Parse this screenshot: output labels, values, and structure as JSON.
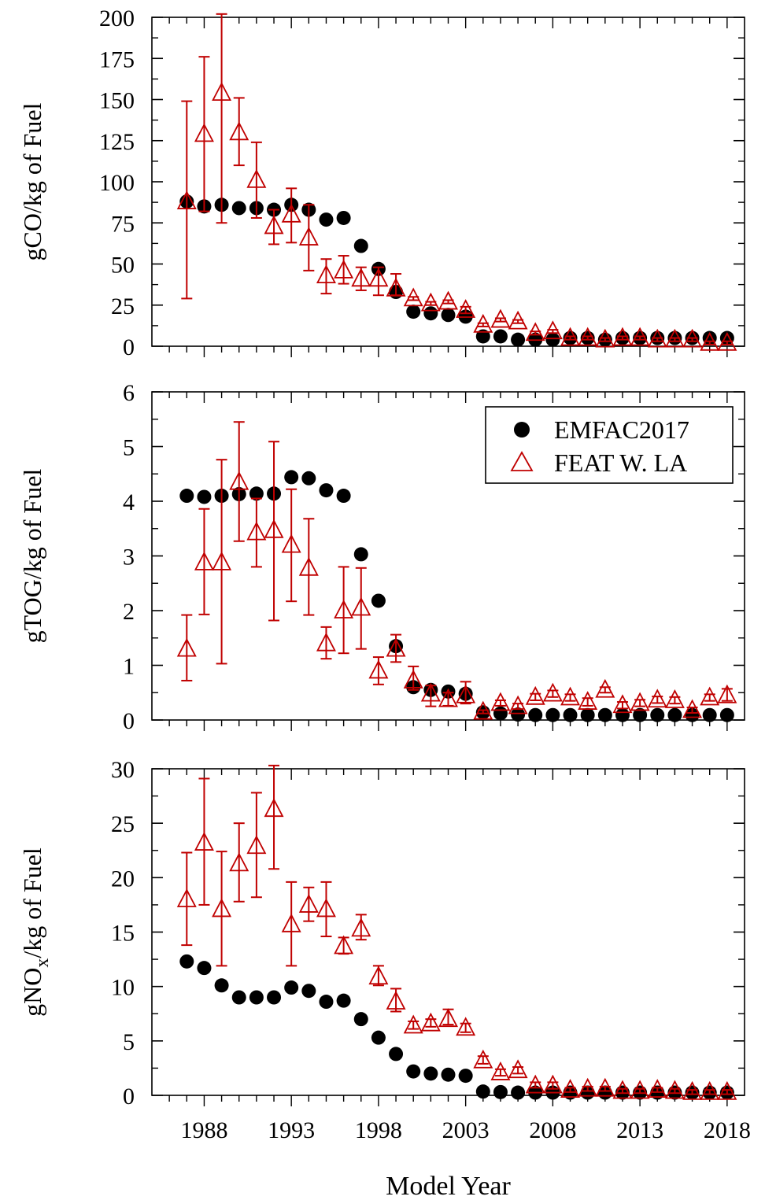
{
  "chart_data": [
    {
      "type": "scatter",
      "ylabel": "gCO/kg of Fuel",
      "ylim": [
        0,
        200
      ],
      "yticks": [
        0,
        25,
        50,
        75,
        100,
        125,
        150,
        175,
        200
      ],
      "xlim": [
        1985,
        2019
      ],
      "xticks": [
        1988,
        1993,
        1998,
        2003,
        2008,
        2013,
        2018
      ],
      "legend": false,
      "series": [
        {
          "name": "EMFAC2017",
          "marker": "filled-circle",
          "color": "#000000",
          "x": [
            1987,
            1988,
            1989,
            1990,
            1991,
            1992,
            1993,
            1994,
            1995,
            1996,
            1997,
            1998,
            1999,
            2000,
            2001,
            2002,
            2003,
            2004,
            2005,
            2006,
            2007,
            2008,
            2009,
            2010,
            2011,
            2012,
            2013,
            2014,
            2015,
            2016,
            2017,
            2018
          ],
          "y": [
            88,
            85,
            86,
            84,
            84,
            83,
            86,
            83,
            77,
            78,
            61,
            47,
            33,
            21,
            20,
            19,
            18,
            6,
            6,
            4,
            4,
            4,
            5,
            5,
            4,
            5,
            5,
            5,
            5,
            5,
            5,
            5
          ]
        },
        {
          "name": "FEAT W. LA",
          "marker": "open-triangle",
          "color": "#c00000",
          "x": [
            1987,
            1988,
            1989,
            1990,
            1991,
            1992,
            1993,
            1994,
            1995,
            1996,
            1997,
            1998,
            1999,
            2000,
            2001,
            2002,
            2003,
            2004,
            2005,
            2006,
            2007,
            2008,
            2009,
            2010,
            2011,
            2012,
            2013,
            2014,
            2015,
            2016,
            2017,
            2018
          ],
          "y": [
            88,
            129,
            154,
            130,
            101,
            73,
            80,
            66,
            43,
            46,
            41,
            41,
            35,
            29,
            26,
            27,
            22,
            13,
            16,
            15,
            8,
            9,
            5,
            5,
            4,
            5,
            5,
            4,
            4,
            4,
            2,
            2
          ],
          "err_low": [
            29,
            82,
            75,
            110,
            78,
            62,
            63,
            46,
            32,
            38,
            34,
            31,
            31,
            28,
            25,
            26,
            20,
            12,
            15,
            14,
            7,
            8,
            4,
            4,
            3,
            4,
            4,
            3,
            3,
            3,
            1,
            1
          ],
          "err_high": [
            149,
            176,
            202,
            151,
            124,
            83,
            96,
            86,
            53,
            55,
            48,
            48,
            44,
            30,
            27,
            28,
            24,
            14,
            17,
            16,
            9,
            10,
            6,
            6,
            5,
            6,
            6,
            5,
            5,
            5,
            3,
            3
          ]
        }
      ]
    },
    {
      "type": "scatter",
      "ylabel": "gTOG/kg of Fuel",
      "ylim": [
        0,
        6
      ],
      "yticks": [
        0,
        1,
        2,
        3,
        4,
        5,
        6
      ],
      "xlim": [
        1985,
        2019
      ],
      "xticks": [
        1988,
        1993,
        1998,
        2003,
        2008,
        2013,
        2018
      ],
      "legend": true,
      "legend_position": "top-right",
      "series": [
        {
          "name": "EMFAC2017",
          "marker": "filled-circle",
          "color": "#000000",
          "x": [
            1987,
            1988,
            1989,
            1990,
            1991,
            1992,
            1993,
            1994,
            1995,
            1996,
            1997,
            1998,
            1999,
            2000,
            2001,
            2002,
            2003,
            2004,
            2005,
            2006,
            2007,
            2008,
            2009,
            2010,
            2011,
            2012,
            2013,
            2014,
            2015,
            2016,
            2017,
            2018
          ],
          "y": [
            4.1,
            4.08,
            4.1,
            4.13,
            4.14,
            4.14,
            4.44,
            4.42,
            4.2,
            4.1,
            3.03,
            2.18,
            1.35,
            0.6,
            0.55,
            0.52,
            0.48,
            0.14,
            0.12,
            0.1,
            0.09,
            0.09,
            0.09,
            0.09,
            0.09,
            0.09,
            0.09,
            0.09,
            0.09,
            0.09,
            0.09,
            0.09
          ]
        },
        {
          "name": "FEAT W. LA",
          "marker": "open-triangle",
          "color": "#c00000",
          "x": [
            1987,
            1988,
            1989,
            1990,
            1991,
            1992,
            1993,
            1994,
            1995,
            1996,
            1997,
            1998,
            1999,
            2000,
            2001,
            2002,
            2003,
            2004,
            2005,
            2006,
            2007,
            2008,
            2009,
            2010,
            2011,
            2012,
            2013,
            2014,
            2015,
            2016,
            2017,
            2018
          ],
          "y": [
            1.3,
            2.88,
            2.88,
            4.35,
            3.43,
            3.47,
            3.2,
            2.78,
            1.4,
            2.0,
            2.05,
            0.9,
            1.3,
            0.72,
            0.48,
            0.38,
            0.45,
            0.15,
            0.31,
            0.25,
            0.42,
            0.48,
            0.41,
            0.33,
            0.55,
            0.27,
            0.31,
            0.37,
            0.36,
            0.18,
            0.41,
            0.45
          ],
          "err_low": [
            0.72,
            1.93,
            1.03,
            3.27,
            2.8,
            1.82,
            2.17,
            1.92,
            1.12,
            1.22,
            1.3,
            0.65,
            1.06,
            0.55,
            0.25,
            0.26,
            0.3,
            0.12,
            0.26,
            0.2,
            0.36,
            0.42,
            0.35,
            0.26,
            0.5,
            0.21,
            0.25,
            0.31,
            0.3,
            0.13,
            0.35,
            0.35
          ],
          "err_high": [
            1.92,
            3.86,
            4.76,
            5.45,
            4.05,
            5.09,
            4.22,
            3.68,
            1.7,
            2.8,
            2.78,
            1.15,
            1.56,
            0.98,
            0.63,
            0.5,
            0.7,
            0.18,
            0.36,
            0.3,
            0.48,
            0.54,
            0.47,
            0.4,
            0.6,
            0.33,
            0.37,
            0.43,
            0.42,
            0.23,
            0.47,
            0.57
          ]
        }
      ]
    },
    {
      "type": "scatter",
      "ylabel": "gNOx/kg of Fuel",
      "ylim": [
        0,
        30
      ],
      "yticks": [
        0,
        5,
        10,
        15,
        20,
        25,
        30
      ],
      "xlim": [
        1985,
        2019
      ],
      "xticks": [
        1988,
        1993,
        1998,
        2003,
        2008,
        2013,
        2018
      ],
      "xlabel": "Model Year",
      "legend": false,
      "series": [
        {
          "name": "EMFAC2017",
          "marker": "filled-circle",
          "color": "#000000",
          "x": [
            1987,
            1988,
            1989,
            1990,
            1991,
            1992,
            1993,
            1994,
            1995,
            1996,
            1997,
            1998,
            1999,
            2000,
            2001,
            2002,
            2003,
            2004,
            2005,
            2006,
            2007,
            2008,
            2009,
            2010,
            2011,
            2012,
            2013,
            2014,
            2015,
            2016,
            2017,
            2018
          ],
          "y": [
            12.3,
            11.7,
            10.1,
            9.0,
            9.0,
            9.0,
            9.9,
            9.6,
            8.6,
            8.7,
            7.0,
            5.3,
            3.8,
            2.2,
            2.0,
            1.9,
            1.8,
            0.35,
            0.3,
            0.25,
            0.25,
            0.25,
            0.25,
            0.25,
            0.25,
            0.25,
            0.25,
            0.25,
            0.25,
            0.25,
            0.25,
            0.25
          ]
        },
        {
          "name": "FEAT W. LA",
          "marker": "open-triangle",
          "color": "#c00000",
          "x": [
            1987,
            1988,
            1989,
            1990,
            1991,
            1992,
            1993,
            1994,
            1995,
            1996,
            1997,
            1998,
            1999,
            2000,
            2001,
            2002,
            2003,
            2004,
            2005,
            2006,
            2007,
            2008,
            2009,
            2010,
            2011,
            2012,
            2013,
            2014,
            2015,
            2016,
            2017,
            2018
          ],
          "y": [
            18.0,
            23.2,
            17.1,
            21.3,
            22.9,
            26.3,
            15.7,
            17.5,
            17.1,
            13.7,
            15.3,
            10.9,
            8.6,
            6.4,
            6.6,
            7.0,
            6.2,
            3.2,
            2.1,
            2.3,
            0.9,
            0.9,
            0.5,
            0.6,
            0.6,
            0.4,
            0.4,
            0.5,
            0.4,
            0.3,
            0.3,
            0.3
          ],
          "err_low": [
            13.8,
            17.5,
            11.9,
            17.8,
            18.2,
            20.8,
            11.9,
            16.0,
            14.6,
            13.0,
            14.3,
            10.1,
            7.7,
            6.1,
            6.3,
            6.5,
            5.8,
            2.9,
            1.8,
            2.0,
            0.7,
            0.6,
            0.3,
            0.4,
            0.4,
            0.2,
            0.2,
            0.3,
            0.2,
            0.1,
            0.1,
            0.1
          ],
          "err_high": [
            22.3,
            29.1,
            22.4,
            25.0,
            27.8,
            30.3,
            19.6,
            19.1,
            19.6,
            14.5,
            16.6,
            11.9,
            9.8,
            6.8,
            7.0,
            7.9,
            6.6,
            3.6,
            2.4,
            2.6,
            1.2,
            1.2,
            0.7,
            0.8,
            0.8,
            0.6,
            0.6,
            0.7,
            0.6,
            0.5,
            0.5,
            0.5
          ]
        }
      ]
    }
  ]
}
